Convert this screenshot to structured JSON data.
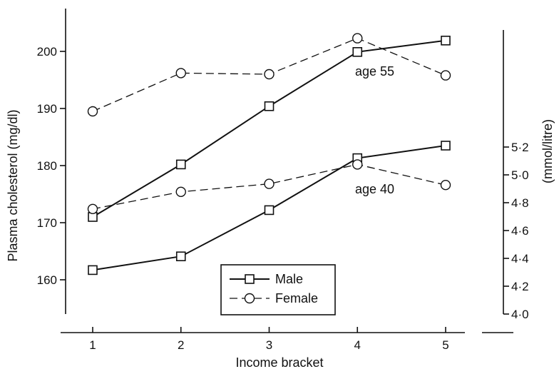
{
  "chart_data": {
    "type": "line",
    "x": [
      1,
      2,
      3,
      4,
      5
    ],
    "xlabel": "Income bracket",
    "ylabel": "Plasma cholesterol (mg/dl)",
    "ylabel_right": "(mmol/litre)",
    "ylim": [
      152,
      208
    ],
    "yticks": [
      160,
      170,
      180,
      190,
      200
    ],
    "yticks_right": [
      "4·0",
      "4·2",
      "4·4",
      "4·6",
      "4·8",
      "5·0",
      "5·2"
    ],
    "yticks_right_values": [
      4.0,
      4.2,
      4.4,
      4.6,
      4.8,
      5.0,
      5.2
    ],
    "series": [
      {
        "name": "Male",
        "group": "age 55",
        "marker": "square",
        "style": "solid",
        "values": [
          171,
          180.2,
          190.4,
          199.9,
          201.9
        ]
      },
      {
        "name": "Female",
        "group": "age 55",
        "marker": "circle",
        "style": "dashed",
        "values": [
          189.5,
          196.2,
          196,
          202.3,
          195.8
        ]
      },
      {
        "name": "Male",
        "group": "age 40",
        "marker": "square",
        "style": "solid",
        "values": [
          161.7,
          164.1,
          172.2,
          181.3,
          183.5
        ]
      },
      {
        "name": "Female",
        "group": "age 40",
        "marker": "circle",
        "style": "dashed",
        "values": [
          172.4,
          175.4,
          176.8,
          180.2,
          176.6
        ]
      }
    ],
    "annotations": [
      "age 55",
      "age 40"
    ],
    "legend": {
      "position": "bottom-center",
      "entries": [
        "Male",
        "Female"
      ]
    },
    "grid": false
  }
}
